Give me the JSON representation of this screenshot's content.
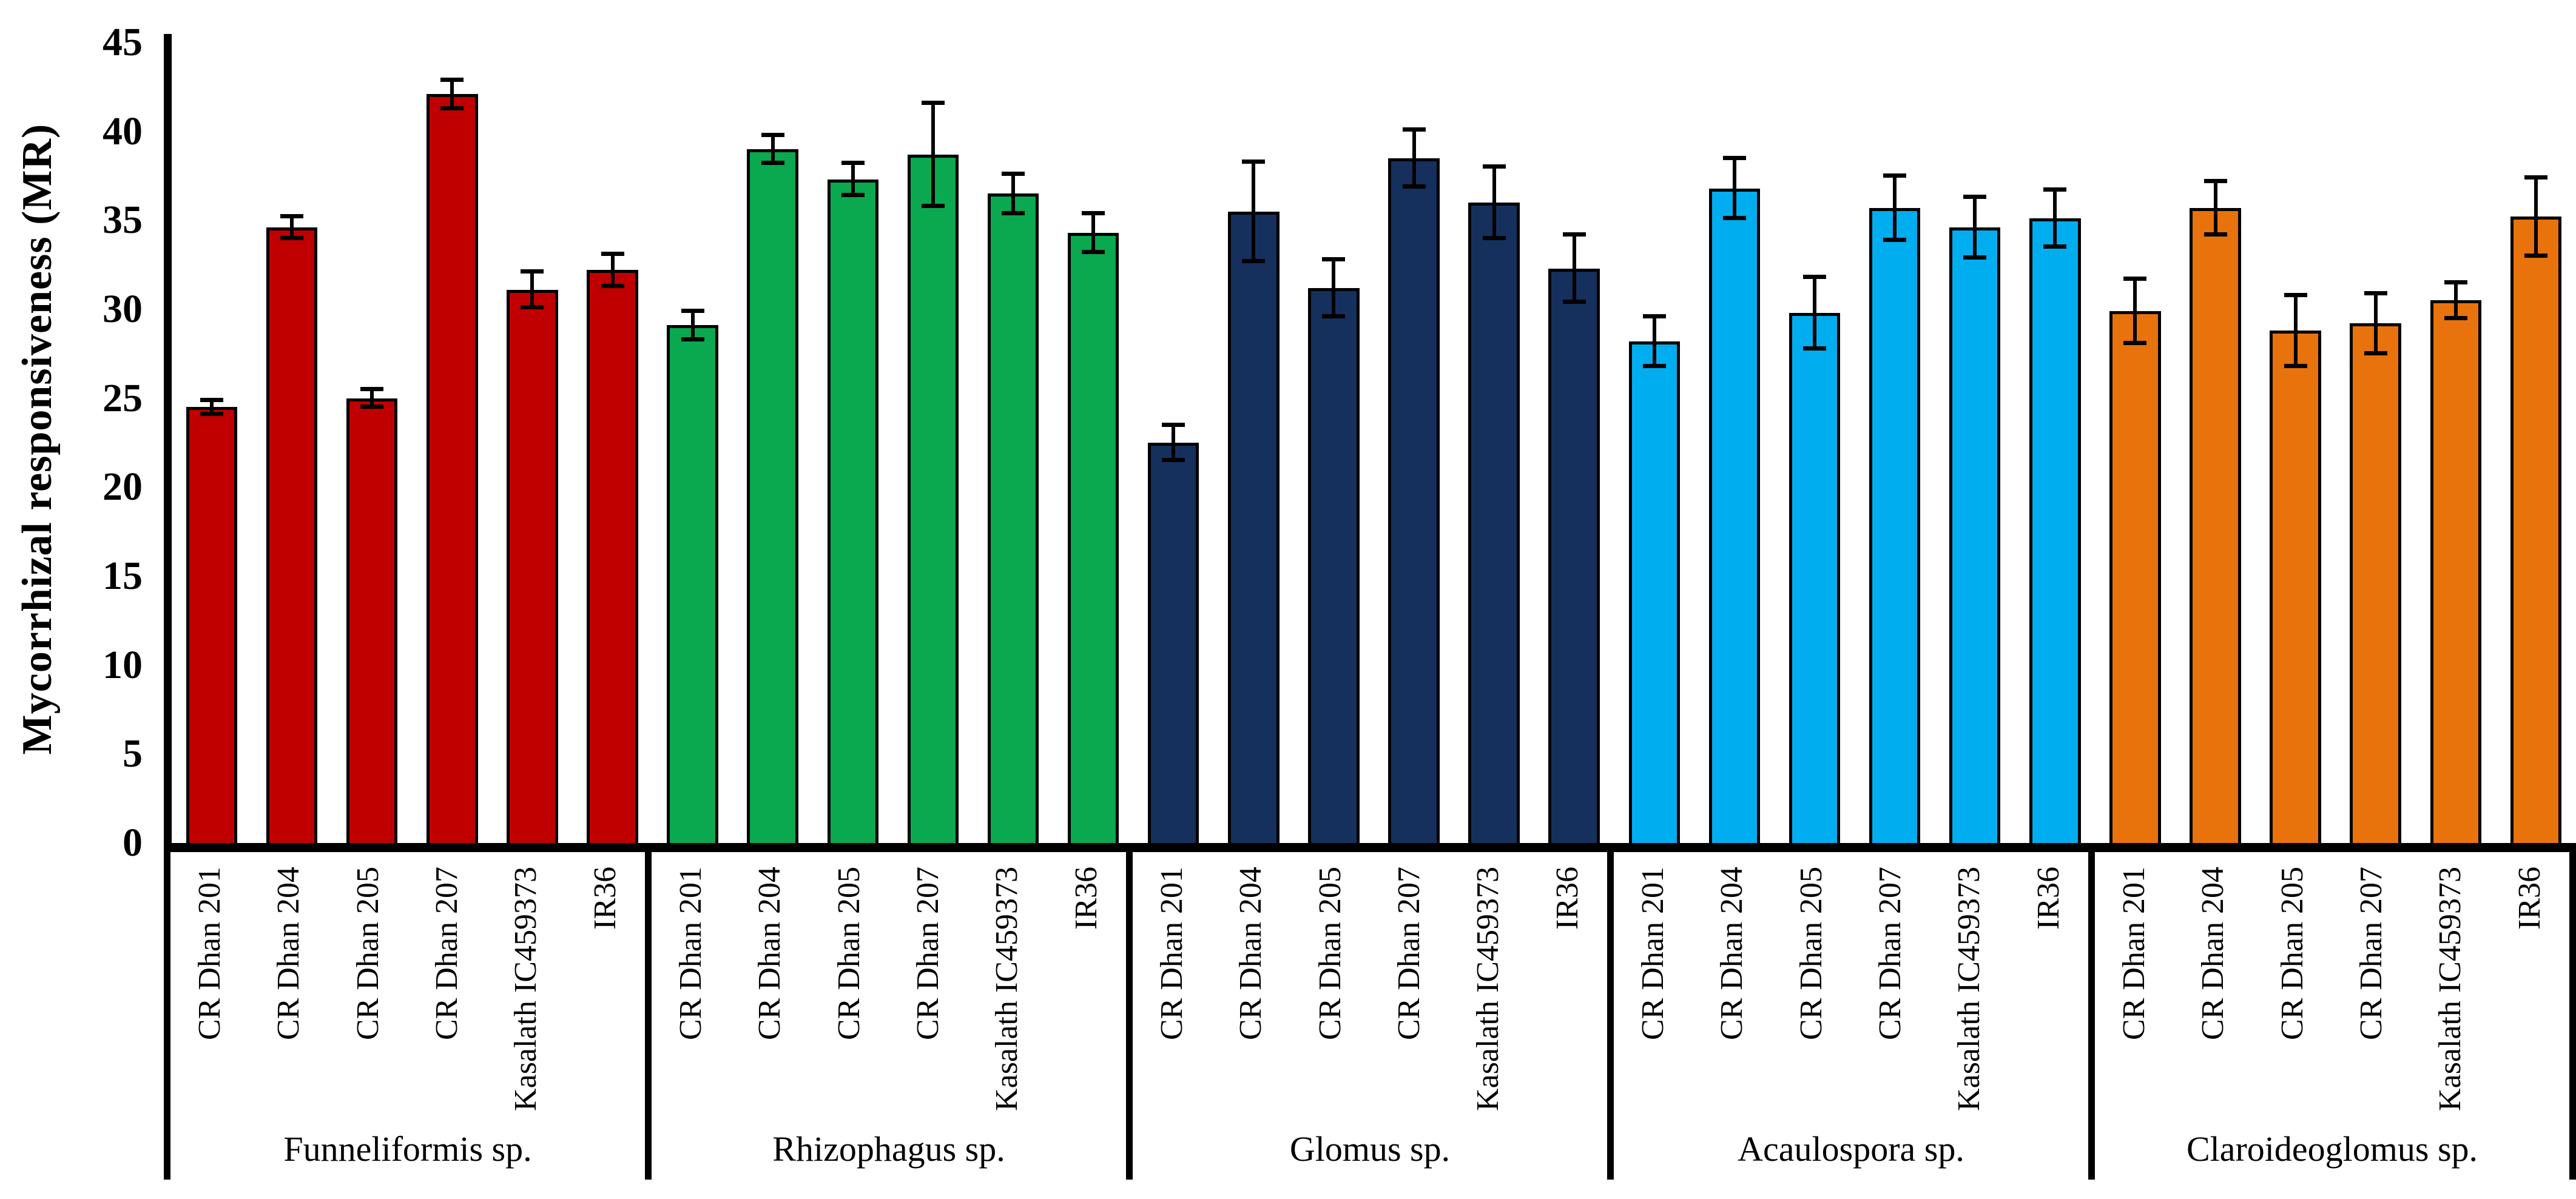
{
  "chart_data": {
    "type": "bar",
    "title": "",
    "xlabel": "",
    "ylabel": "Mycorrhizal responsiveness (MR)",
    "ylim": [
      0,
      45
    ],
    "ytick_step": 5,
    "ytick_labels": [
      "45",
      "40",
      "35",
      "30",
      "25",
      "20",
      "15",
      "10",
      "5",
      "0"
    ],
    "grid": false,
    "legend_position": "none",
    "error_bars": true,
    "categories": [
      "CR Dhan 201",
      "CR Dhan 204",
      "CR Dhan 205",
      "CR Dhan 207",
      "Kasalath IC459373",
      "IR36"
    ],
    "series": [
      {
        "name": "Funneliformis sp.",
        "color": "#C00000",
        "values": [
          24.5,
          34.6,
          25.0,
          42.1,
          31.1,
          32.2
        ],
        "errors": [
          0.4,
          0.6,
          0.5,
          0.8,
          1.0,
          0.9
        ]
      },
      {
        "name": "Rhizophagus sp.",
        "color": "#0AA84F",
        "values": [
          29.1,
          39.0,
          37.3,
          38.7,
          36.5,
          34.3
        ],
        "errors": [
          0.8,
          0.8,
          0.9,
          2.9,
          1.1,
          1.1
        ]
      },
      {
        "name": "Glomus sp.",
        "color": "#16305E",
        "values": [
          22.5,
          35.5,
          31.2,
          38.5,
          36.0,
          32.3
        ],
        "errors": [
          1.0,
          2.8,
          1.6,
          1.6,
          2.0,
          1.9
        ]
      },
      {
        "name": "Acaulospora sp.",
        "color": "#00AEEF",
        "values": [
          28.2,
          36.8,
          29.8,
          35.7,
          34.6,
          35.1
        ],
        "errors": [
          1.4,
          1.7,
          2.0,
          1.8,
          1.7,
          1.6
        ]
      },
      {
        "name": "Claroideoglomus sp.",
        "color": "#E8720C",
        "values": [
          29.9,
          35.7,
          28.8,
          29.2,
          30.5,
          35.2
        ],
        "errors": [
          1.8,
          1.5,
          2.0,
          1.7,
          1.0,
          2.2
        ]
      }
    ]
  }
}
